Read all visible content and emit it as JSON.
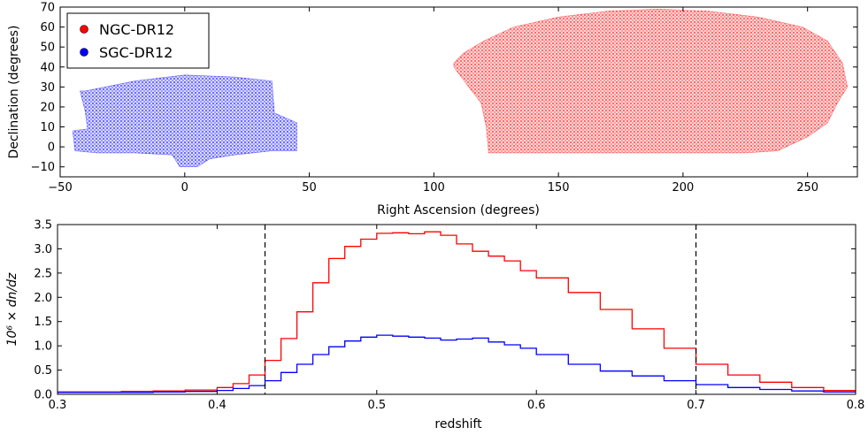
{
  "colors": {
    "ngc": "#ff0000",
    "sgc": "#0000ff",
    "axes": "#000000",
    "vline": "#000000"
  },
  "chart_data": [
    {
      "type": "scatter",
      "xlabel": "Right Ascension (degrees)",
      "ylabel": "Declination (degrees)",
      "xlim": [
        -50,
        270
      ],
      "ylim": [
        -15,
        70
      ],
      "xticks": [
        -50,
        0,
        50,
        100,
        150,
        200,
        250
      ],
      "yticks": [
        -10,
        0,
        10,
        20,
        30,
        40,
        50,
        60,
        70
      ],
      "xtick_labels": [
        "−50",
        "0",
        "50",
        "100",
        "150",
        "200",
        "250"
      ],
      "ytick_labels": [
        "−10",
        "0",
        "10",
        "20",
        "30",
        "40",
        "50",
        "60",
        "70"
      ],
      "grid": false,
      "legend_position": "top-left",
      "series": [
        {
          "name": "NGC-DR12",
          "color": "#ff0000",
          "footprint_ra_dec": [
            [
              108,
              42
            ],
            [
              112,
              47
            ],
            [
              120,
              53
            ],
            [
              132,
              60
            ],
            [
              150,
              65
            ],
            [
              170,
              68
            ],
            [
              190,
              69
            ],
            [
              210,
              68
            ],
            [
              230,
              65
            ],
            [
              248,
              60
            ],
            [
              258,
              53
            ],
            [
              264,
              42
            ],
            [
              266,
              30
            ],
            [
              262,
              22
            ],
            [
              258,
              12
            ],
            [
              250,
              5
            ],
            [
              238,
              -2
            ],
            [
              225,
              -3
            ],
            [
              200,
              -3
            ],
            [
              175,
              -3
            ],
            [
              150,
              -3
            ],
            [
              122,
              -3
            ],
            [
              121,
              10
            ],
            [
              119,
              22
            ],
            [
              114,
              30
            ],
            [
              108,
              40
            ]
          ]
        },
        {
          "name": "SGC-DR12",
          "color": "#0000ff",
          "footprint_ra_dec": [
            [
              -40,
              28
            ],
            [
              -20,
              33
            ],
            [
              0,
              36
            ],
            [
              20,
              35
            ],
            [
              35,
              33
            ],
            [
              36,
              17
            ],
            [
              45,
              12
            ],
            [
              45,
              -2
            ],
            [
              35,
              -2
            ],
            [
              20,
              -4
            ],
            [
              10,
              -6
            ],
            [
              5,
              -10
            ],
            [
              -2,
              -10
            ],
            [
              -5,
              -4
            ],
            [
              -20,
              -3
            ],
            [
              -35,
              -3
            ],
            [
              -44,
              -2
            ],
            [
              -45,
              8
            ],
            [
              -39,
              9
            ],
            [
              -40,
              18
            ],
            [
              -42,
              28
            ]
          ]
        }
      ]
    },
    {
      "type": "line",
      "xlabel": "redshift",
      "ylabel": "10⁶ × dn/dz",
      "xlim": [
        0.3,
        0.8
      ],
      "ylim": [
        0.0,
        3.5
      ],
      "xticks": [
        0.3,
        0.4,
        0.5,
        0.6,
        0.7,
        0.8
      ],
      "yticks": [
        0.0,
        0.5,
        1.0,
        1.5,
        2.0,
        2.5,
        3.0,
        3.5
      ],
      "xtick_labels": [
        "0.3",
        "0.4",
        "0.5",
        "0.6",
        "0.7",
        "0.8"
      ],
      "ytick_labels": [
        "0.0",
        "0.5",
        "1.0",
        "1.5",
        "2.0",
        "2.5",
        "3.0",
        "3.5"
      ],
      "grid": false,
      "step": true,
      "vlines": [
        0.43,
        0.7
      ],
      "series": [
        {
          "name": "NGC-DR12",
          "color": "#ff0000",
          "x": [
            0.3,
            0.32,
            0.34,
            0.36,
            0.38,
            0.4,
            0.41,
            0.42,
            0.43,
            0.44,
            0.45,
            0.46,
            0.47,
            0.48,
            0.49,
            0.5,
            0.51,
            0.52,
            0.53,
            0.54,
            0.55,
            0.56,
            0.57,
            0.58,
            0.59,
            0.6,
            0.62,
            0.64,
            0.66,
            0.68,
            0.7,
            0.72,
            0.74,
            0.76,
            0.78,
            0.8
          ],
          "y": [
            0.05,
            0.05,
            0.06,
            0.07,
            0.09,
            0.14,
            0.22,
            0.4,
            0.7,
            1.15,
            1.7,
            2.3,
            2.8,
            3.05,
            3.2,
            3.32,
            3.33,
            3.31,
            3.35,
            3.28,
            3.1,
            2.95,
            2.85,
            2.75,
            2.55,
            2.4,
            2.1,
            1.75,
            1.35,
            0.95,
            0.62,
            0.4,
            0.25,
            0.14,
            0.08,
            0.04
          ]
        },
        {
          "name": "SGC-DR12",
          "color": "#0000ff",
          "x": [
            0.3,
            0.32,
            0.34,
            0.36,
            0.38,
            0.4,
            0.41,
            0.42,
            0.43,
            0.44,
            0.45,
            0.46,
            0.47,
            0.48,
            0.49,
            0.5,
            0.51,
            0.52,
            0.53,
            0.54,
            0.55,
            0.56,
            0.57,
            0.58,
            0.59,
            0.6,
            0.62,
            0.64,
            0.66,
            0.68,
            0.7,
            0.72,
            0.74,
            0.76,
            0.78,
            0.8
          ],
          "y": [
            0.04,
            0.04,
            0.04,
            0.05,
            0.06,
            0.08,
            0.12,
            0.18,
            0.28,
            0.45,
            0.62,
            0.82,
            0.98,
            1.1,
            1.18,
            1.22,
            1.2,
            1.18,
            1.16,
            1.12,
            1.14,
            1.16,
            1.08,
            1.02,
            0.95,
            0.82,
            0.62,
            0.48,
            0.38,
            0.28,
            0.2,
            0.14,
            0.1,
            0.07,
            0.05,
            0.03
          ]
        }
      ]
    }
  ]
}
